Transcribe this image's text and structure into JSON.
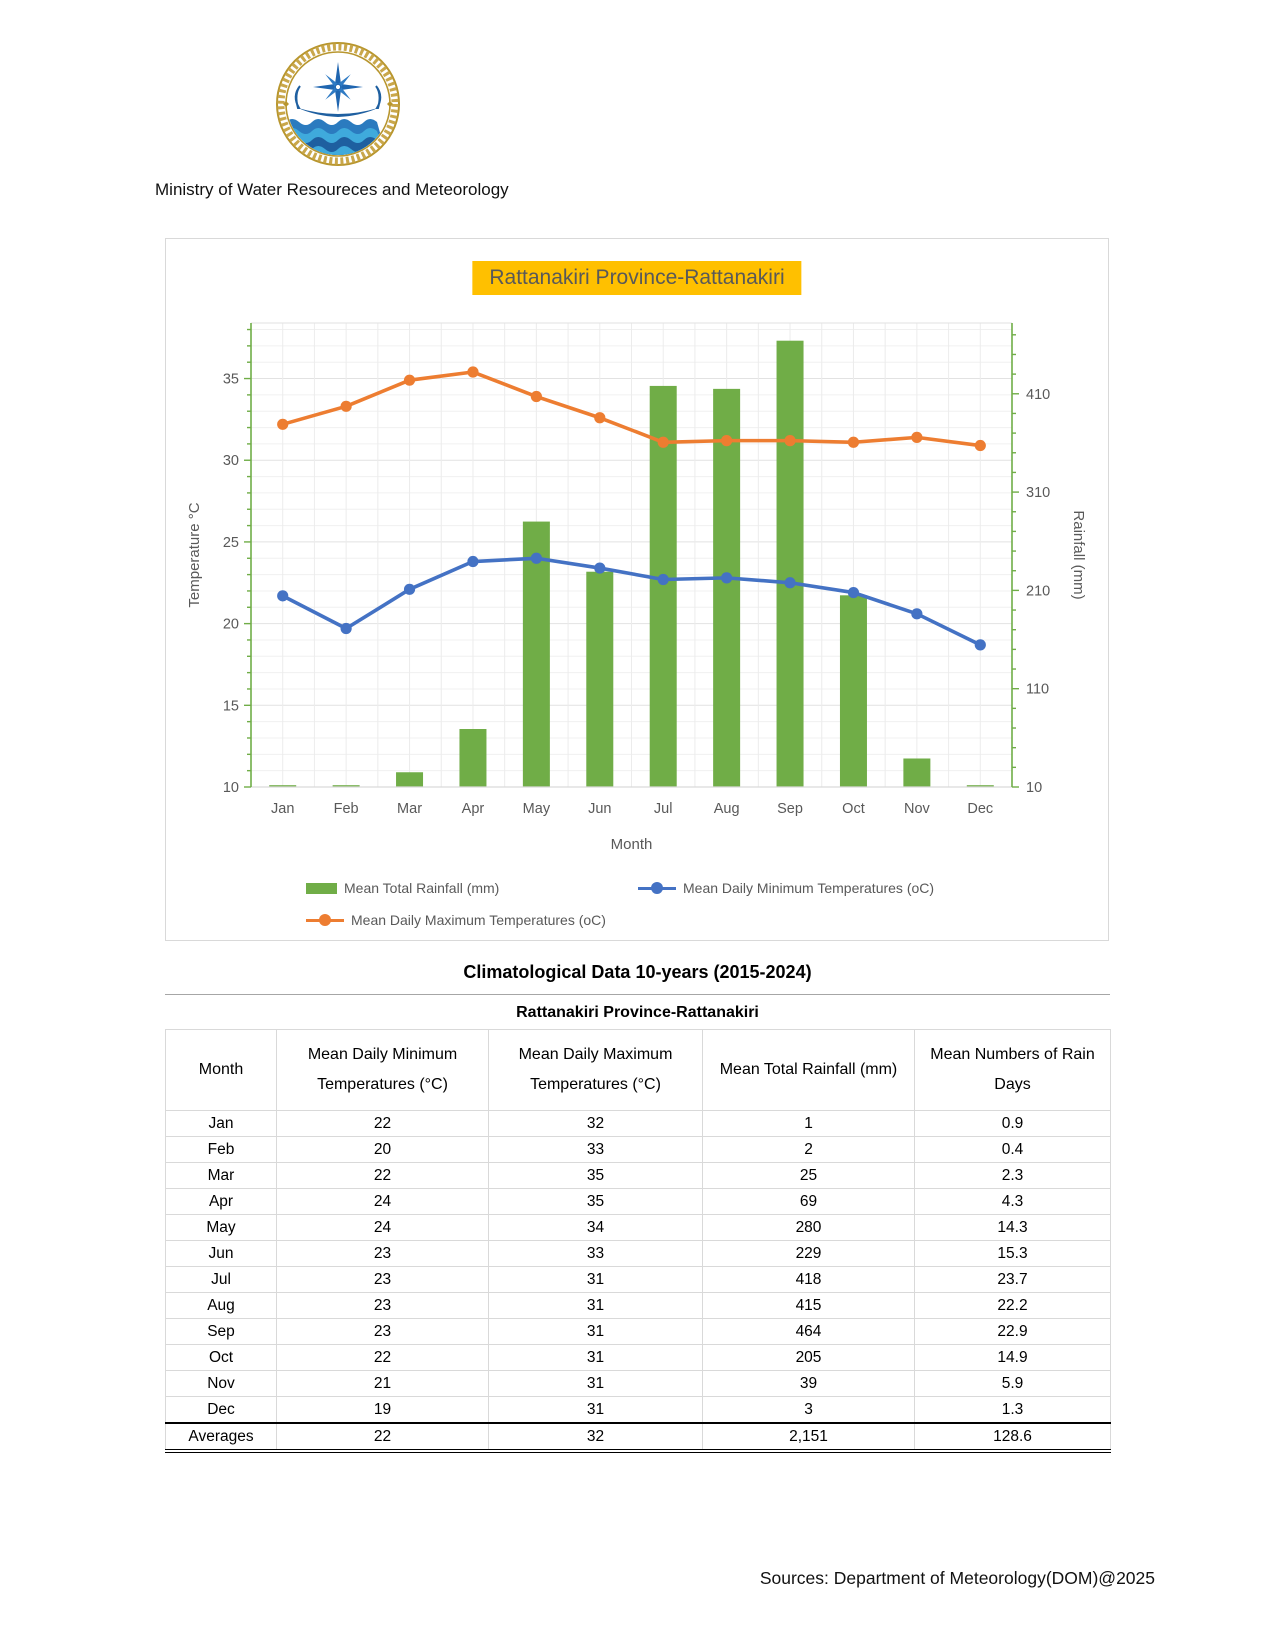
{
  "header": {
    "ministry": "Ministry of Water Resoureces and Meteorology"
  },
  "chart_data": {
    "type": "combo-bar-line",
    "title": "Rattanakiri Province-Rattanakiri",
    "categories": [
      "Jan",
      "Feb",
      "Mar",
      "Apr",
      "May",
      "Jun",
      "Jul",
      "Aug",
      "Sep",
      "Oct",
      "Nov",
      "Dec"
    ],
    "xlabel": "Month",
    "ylabel_left": "Temperature °C",
    "ylabel_right": "Rainfall (mm)",
    "left_axis": {
      "min": 10,
      "max": 38.4,
      "ticks": [
        10,
        15,
        20,
        25,
        30,
        35
      ],
      "minor_step": 1,
      "color": "#70AD47"
    },
    "right_axis": {
      "min": 10,
      "max": 482,
      "ticks": [
        10,
        110,
        210,
        310,
        410
      ],
      "minor_step": 20,
      "color": "#70AD47"
    },
    "series": [
      {
        "name": "Mean Total Rainfall (mm)",
        "type": "bar",
        "axis": "right",
        "color": "#70AD47",
        "values": [
          1,
          2,
          25,
          69,
          280,
          229,
          418,
          415,
          464,
          205,
          39,
          3
        ]
      },
      {
        "name": "Mean Daily Minimum Temperatures (oC)",
        "type": "line",
        "axis": "left",
        "color": "#4472C4",
        "values": [
          21.7,
          19.7,
          22.1,
          23.8,
          24.0,
          23.4,
          22.7,
          22.8,
          22.5,
          21.9,
          20.6,
          18.7
        ]
      },
      {
        "name": "Mean Daily Maximum Temperatures (oC)",
        "type": "line",
        "axis": "left",
        "color": "#ED7D31",
        "values": [
          32.2,
          33.3,
          34.9,
          35.4,
          33.9,
          32.6,
          31.1,
          31.2,
          31.2,
          31.1,
          31.4,
          30.9
        ]
      }
    ],
    "grid": {
      "h_minor": "#F0F0F0",
      "h_major": "#E2E2E2",
      "v_minor": "#ECECEC",
      "baseline": "#D9D9D9"
    },
    "legend_position": "bottom"
  },
  "table": {
    "title": "Climatological Data  10-years (2015-2024)",
    "subtitle": "Rattanakiri Province-Rattanakiri",
    "columns": [
      "Month",
      "Mean Daily Minimum Temperatures (°C)",
      "Mean Daily Maximum Temperatures (°C)",
      "Mean Total Rainfall (mm)",
      "Mean Numbers of Rain Days"
    ],
    "rows": [
      [
        "Jan",
        "22",
        "32",
        "1",
        "0.9"
      ],
      [
        "Feb",
        "20",
        "33",
        "2",
        "0.4"
      ],
      [
        "Mar",
        "22",
        "35",
        "25",
        "2.3"
      ],
      [
        "Apr",
        "24",
        "35",
        "69",
        "4.3"
      ],
      [
        "May",
        "24",
        "34",
        "280",
        "14.3"
      ],
      [
        "Jun",
        "23",
        "33",
        "229",
        "15.3"
      ],
      [
        "Jul",
        "23",
        "31",
        "418",
        "23.7"
      ],
      [
        "Aug",
        "23",
        "31",
        "415",
        "22.2"
      ],
      [
        "Sep",
        "23",
        "31",
        "464",
        "22.9"
      ],
      [
        "Oct",
        "22",
        "31",
        "205",
        "14.9"
      ],
      [
        "Nov",
        "21",
        "31",
        "39",
        "5.9"
      ],
      [
        "Dec",
        "19",
        "31",
        "3",
        "1.3"
      ]
    ],
    "averages": [
      "Averages",
      "22",
      "32",
      "2,151",
      "128.6"
    ]
  },
  "footer": {
    "sources": "Sources: Department of Meteorology(DOM)@2025"
  }
}
